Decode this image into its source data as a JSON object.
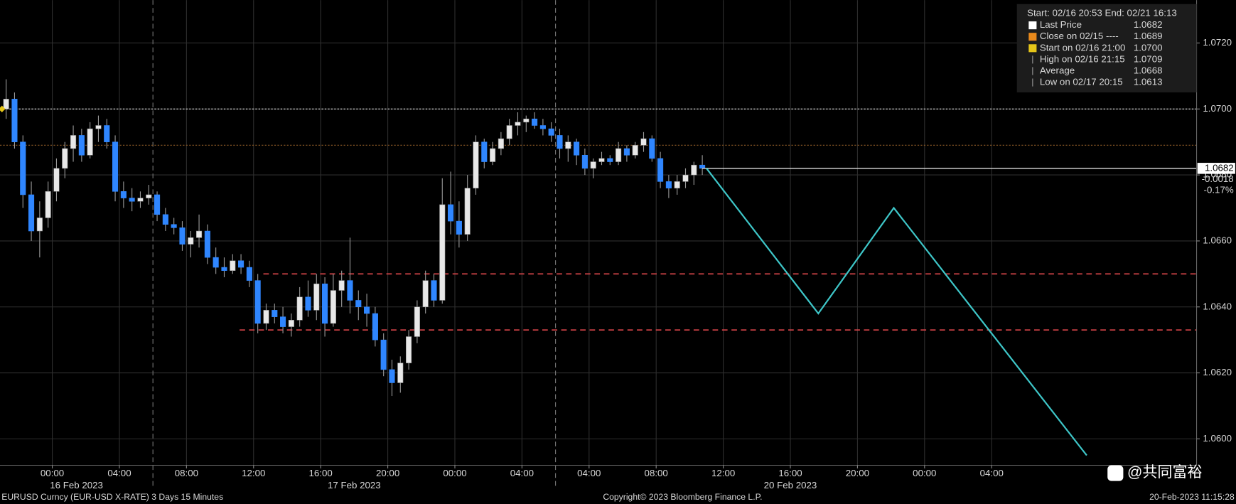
{
  "chart_data": {
    "type": "candlestick",
    "x": [
      "2023-02-16 21:00",
      "2023-02-16 21:30",
      "2023-02-16 22:00",
      "2023-02-16 22:30",
      "2023-02-16 23:00",
      "2023-02-16 23:30",
      "2023-02-17 00:00",
      "2023-02-17 00:30",
      "2023-02-17 01:00",
      "2023-02-17 01:30",
      "2023-02-17 02:00",
      "2023-02-17 02:30",
      "2023-02-17 03:00",
      "2023-02-17 03:30",
      "2023-02-17 04:00",
      "2023-02-17 04:30",
      "2023-02-17 05:00",
      "2023-02-17 05:30",
      "2023-02-17 06:00",
      "2023-02-17 06:30",
      "2023-02-17 07:00",
      "2023-02-17 07:30",
      "2023-02-17 08:00",
      "2023-02-17 08:30",
      "2023-02-17 09:00",
      "2023-02-17 09:30",
      "2023-02-17 10:00",
      "2023-02-17 10:30",
      "2023-02-17 11:00",
      "2023-02-17 11:30",
      "2023-02-17 12:00",
      "2023-02-17 12:30",
      "2023-02-17 13:00",
      "2023-02-17 13:30",
      "2023-02-17 14:00",
      "2023-02-17 14:30",
      "2023-02-17 15:00",
      "2023-02-17 15:30",
      "2023-02-17 16:00",
      "2023-02-17 16:30",
      "2023-02-17 17:00",
      "2023-02-17 17:30",
      "2023-02-17 18:00",
      "2023-02-17 18:30",
      "2023-02-17 19:00",
      "2023-02-17 19:30",
      "2023-02-17 20:00",
      "2023-02-17 20:30",
      "2023-02-17 21:00",
      "2023-02-17 21:30",
      "2023-02-17 22:00",
      "2023-02-17 22:30",
      "2023-02-17 23:00",
      "2023-02-17 23:30",
      "2023-02-18 00:00",
      "2023-02-18 00:30",
      "2023-02-18 01:00",
      "2023-02-18 01:30",
      "2023-02-18 02:00",
      "2023-02-18 02:30",
      "2023-02-18 03:00",
      "2023-02-18 03:30",
      "2023-02-18 04:00",
      "2023-02-18 04:30",
      "2023-02-18 05:00",
      "2023-02-18 05:30",
      "2023-02-20 02:00",
      "2023-02-20 02:30",
      "2023-02-20 03:00",
      "2023-02-20 03:30",
      "2023-02-20 04:00",
      "2023-02-20 04:30",
      "2023-02-20 05:00",
      "2023-02-20 05:30",
      "2023-02-20 06:00",
      "2023-02-20 06:30",
      "2023-02-20 07:00",
      "2023-02-20 07:30",
      "2023-02-20 08:00",
      "2023-02-20 08:30",
      "2023-02-20 09:00",
      "2023-02-20 09:30",
      "2023-02-20 10:00",
      "2023-02-20 10:30"
    ],
    "open": [
      1.07,
      1.0703,
      1.069,
      1.0674,
      1.0663,
      1.0667,
      1.0675,
      1.0682,
      1.0688,
      1.0692,
      1.0686,
      1.0694,
      1.0695,
      1.069,
      1.0675,
      1.0673,
      1.0672,
      1.0673,
      1.0674,
      1.0668,
      1.0665,
      1.0664,
      1.0659,
      1.0661,
      1.0663,
      1.0655,
      1.0652,
      1.0651,
      1.0654,
      1.0652,
      1.0648,
      1.0635,
      1.0639,
      1.0637,
      1.0634,
      1.0636,
      1.0643,
      1.0639,
      1.0647,
      1.0635,
      1.0645,
      1.0648,
      1.0642,
      1.064,
      1.0638,
      1.063,
      1.0621,
      1.0617,
      1.0623,
      1.0631,
      1.064,
      1.0648,
      1.0642,
      1.0671,
      1.0666,
      1.0662,
      1.0676,
      1.069,
      1.0684,
      1.0688,
      1.0691,
      1.0695,
      1.0696,
      1.0697,
      1.0695,
      1.0694,
      1.0692,
      1.0688,
      1.069,
      1.0686,
      1.0682,
      1.0684,
      1.0685,
      1.0684,
      1.0688,
      1.0686,
      1.0689,
      1.0691,
      1.0685,
      1.0678,
      1.0676,
      1.0678,
      1.068,
      1.0683
    ],
    "high": [
      1.0709,
      1.0705,
      1.0692,
      1.0678,
      1.0672,
      1.0678,
      1.0685,
      1.069,
      1.0695,
      1.0694,
      1.0696,
      1.0698,
      1.0697,
      1.0692,
      1.0678,
      1.0676,
      1.0675,
      1.0677,
      1.0675,
      1.067,
      1.0667,
      1.0666,
      1.0663,
      1.0668,
      1.0665,
      1.0658,
      1.0655,
      1.0656,
      1.0656,
      1.0654,
      1.065,
      1.0641,
      1.0641,
      1.064,
      1.0638,
      1.0646,
      1.0648,
      1.065,
      1.0649,
      1.065,
      1.0651,
      1.0661,
      1.0645,
      1.0644,
      1.064,
      1.0632,
      1.0624,
      1.0625,
      1.0633,
      1.0642,
      1.0651,
      1.065,
      1.0679,
      1.0681,
      1.0672,
      1.068,
      1.0692,
      1.0691,
      1.069,
      1.0693,
      1.0697,
      1.0699,
      1.0698,
      1.0699,
      1.0697,
      1.0696,
      1.0694,
      1.0692,
      1.0691,
      1.0688,
      1.0685,
      1.0687,
      1.0686,
      1.069,
      1.0689,
      1.069,
      1.0693,
      1.0692,
      1.0687,
      1.068,
      1.068,
      1.0682,
      1.0684,
      1.0686
    ],
    "low": [
      1.0697,
      1.0688,
      1.067,
      1.066,
      1.0655,
      1.0664,
      1.0672,
      1.0679,
      1.0684,
      1.0684,
      1.0685,
      1.069,
      1.0688,
      1.0672,
      1.067,
      1.0669,
      1.067,
      1.0671,
      1.0666,
      1.0663,
      1.0662,
      1.0657,
      1.0655,
      1.0658,
      1.0653,
      1.065,
      1.0649,
      1.065,
      1.065,
      1.0646,
      1.0632,
      1.0633,
      1.0635,
      1.0632,
      1.0631,
      1.0634,
      1.0637,
      1.0636,
      1.0631,
      1.0634,
      1.064,
      1.0638,
      1.0636,
      1.0634,
      1.0628,
      1.0619,
      1.0613,
      1.0614,
      1.0621,
      1.0629,
      1.0638,
      1.064,
      1.0641,
      1.0662,
      1.0658,
      1.066,
      1.0674,
      1.0682,
      1.0683,
      1.0686,
      1.0689,
      1.0692,
      1.0693,
      1.0694,
      1.0692,
      1.069,
      1.0685,
      1.0684,
      1.0683,
      1.068,
      1.0679,
      1.0683,
      1.0683,
      1.0683,
      1.0684,
      1.0685,
      1.0687,
      1.0684,
      1.0676,
      1.0673,
      1.0674,
      1.0676,
      1.0677,
      1.068
    ],
    "close": [
      1.0703,
      1.069,
      1.0674,
      1.0663,
      1.0667,
      1.0675,
      1.0682,
      1.0688,
      1.0692,
      1.0686,
      1.0694,
      1.0695,
      1.069,
      1.0675,
      1.0673,
      1.0672,
      1.0673,
      1.0674,
      1.0668,
      1.0665,
      1.0664,
      1.0659,
      1.0661,
      1.0663,
      1.0655,
      1.0652,
      1.0651,
      1.0654,
      1.0652,
      1.0648,
      1.0635,
      1.0639,
      1.0637,
      1.0634,
      1.0636,
      1.0643,
      1.0639,
      1.0647,
      1.0635,
      1.0645,
      1.0648,
      1.0642,
      1.064,
      1.0638,
      1.063,
      1.0621,
      1.0617,
      1.0623,
      1.0631,
      1.064,
      1.0648,
      1.0642,
      1.0671,
      1.0666,
      1.0662,
      1.0676,
      1.069,
      1.0684,
      1.0688,
      1.0691,
      1.0695,
      1.0696,
      1.0697,
      1.0695,
      1.0694,
      1.0692,
      1.0688,
      1.069,
      1.0686,
      1.0682,
      1.0684,
      1.0685,
      1.0684,
      1.0688,
      1.0686,
      1.0689,
      1.0691,
      1.0685,
      1.0678,
      1.0676,
      1.0678,
      1.068,
      1.0683,
      1.0682
    ],
    "up_color": "#e8e8e8",
    "down_color": "#2f86ff",
    "wick_color": "#9a9a9a",
    "xlim": [
      "2023-02-16 20:53",
      "2023-02-21 16:13"
    ],
    "x_break": [
      "2023-02-18 06:00",
      "2023-02-20 02:00"
    ],
    "xticks": [
      {
        "value": "2023-02-17 00:00",
        "label": "00:00"
      },
      {
        "value": "2023-02-17 04:00",
        "label": "04:00"
      },
      {
        "value": "2023-02-17 08:00",
        "label": "08:00"
      },
      {
        "value": "2023-02-17 12:00",
        "label": "12:00"
      },
      {
        "value": "2023-02-17 16:00",
        "label": "16:00"
      },
      {
        "value": "2023-02-17 20:00",
        "label": "20:00"
      },
      {
        "value": "2023-02-18 00:00",
        "label": "00:00"
      },
      {
        "value": "2023-02-18 04:00",
        "label": "04:00"
      },
      {
        "value": "2023-02-20 04:00",
        "label": "04:00"
      },
      {
        "value": "2023-02-20 08:00",
        "label": "08:00"
      },
      {
        "value": "2023-02-20 12:00",
        "label": "12:00"
      },
      {
        "value": "2023-02-20 16:00",
        "label": "16:00"
      },
      {
        "value": "2023-02-20 20:00",
        "label": "20:00"
      },
      {
        "value": "2023-02-21 00:00",
        "label": "00:00"
      },
      {
        "value": "2023-02-21 04:00",
        "label": "04:00"
      }
    ],
    "day_bounds": [
      "2023-02-17 06:00",
      "2023-02-18 06:00",
      "2023-02-21 06:00"
    ],
    "day_labels": [
      "16 Feb 2023",
      "17 Feb 2023",
      "20 Feb 2023"
    ],
    "ylim": [
      1.0592,
      1.0733
    ],
    "yticks": [
      {
        "value": 1.06,
        "label": "1.0600"
      },
      {
        "value": 1.062,
        "label": "1.0620"
      },
      {
        "value": 1.064,
        "label": "1.0640"
      },
      {
        "value": 1.066,
        "label": "1.0660"
      },
      {
        "value": 1.068,
        "label": "1.0680"
      },
      {
        "value": 1.07,
        "label": "1.0700"
      },
      {
        "value": 1.072,
        "label": "1.0720"
      }
    ],
    "grid": true,
    "legend": {
      "header": "Start: 02/16 20:53 End: 02/21 16:13",
      "items": [
        {
          "name": "Last Price",
          "color": "#ffffff"
        },
        {
          "name": "Close on 02/15 ----",
          "color": "#e8891c"
        },
        {
          "name": "Start on 02/16 21:00",
          "color": "#e6c619"
        },
        {
          "name": "High on 02/16 21:15"
        },
        {
          "name": "Average"
        },
        {
          "name": "Low on 02/17 20:15"
        }
      ],
      "values": [
        1.0682,
        1.0689,
        1.07,
        1.0709,
        1.0668,
        1.0613
      ],
      "value_labels": [
        "1.0682",
        "1.0689",
        "1.0700",
        "1.0709",
        "1.0668",
        "1.0613"
      ]
    },
    "last_price": 1.0682,
    "change": -0.0018,
    "change_pct": "-0.17%",
    "reference_lines": [
      {
        "value": 1.065,
        "start": "2023-02-17 12:35",
        "color": "#e0474c"
      },
      {
        "value": 1.0633,
        "start": "2023-02-17 11:10",
        "color": "#e0474c"
      }
    ],
    "projection": {
      "color": "#3ec6c8",
      "x": [
        "2023-02-20 11:00",
        "2023-02-20 17:40",
        "2023-02-20 22:10",
        "2023-02-21 09:40"
      ],
      "values": [
        1.0682,
        1.0638,
        1.067,
        1.0595
      ]
    },
    "footer_left": "EURUSD Curncy (EUR-USD X-RATE) 3 Days 15 Minutes",
    "footer_center": "Copyright© 2023 Bloomberg Finance L.P.",
    "footer_right": "20-Feb-2023 11:15:28",
    "watermark": "@共同富裕"
  }
}
